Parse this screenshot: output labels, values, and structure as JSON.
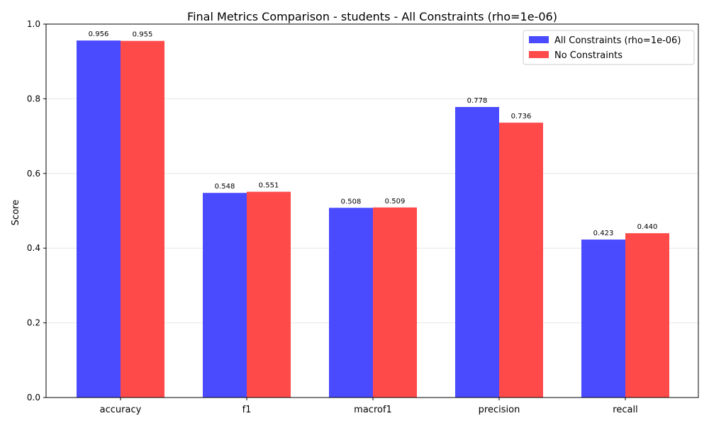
{
  "chart_data": {
    "type": "bar",
    "title": "Final Metrics Comparison - students - All Constraints (rho=1e-06)",
    "xlabel": "",
    "ylabel": "Score",
    "categories": [
      "accuracy",
      "f1",
      "macrof1",
      "precision",
      "recall"
    ],
    "series": [
      {
        "name": "All Constraints (rho=1e-06)",
        "color": "#4a4aff",
        "values": [
          0.956,
          0.548,
          0.508,
          0.778,
          0.423
        ],
        "labels": [
          "0.956",
          "0.548",
          "0.508",
          "0.778",
          "0.423"
        ]
      },
      {
        "name": "No Constraints",
        "color": "#ff4a4a",
        "values": [
          0.955,
          0.551,
          0.509,
          0.736,
          0.44
        ],
        "labels": [
          "0.955",
          "0.551",
          "0.509",
          "0.736",
          "0.440"
        ]
      }
    ],
    "ylim": [
      0,
      1.0
    ],
    "yticks": [
      0.0,
      0.2,
      0.4,
      0.6,
      0.8,
      1.0
    ],
    "ytick_labels": [
      "0.0",
      "0.2",
      "0.4",
      "0.6",
      "0.8",
      "1.0"
    ],
    "grid": "horizontal",
    "legend_position": "top-right"
  }
}
